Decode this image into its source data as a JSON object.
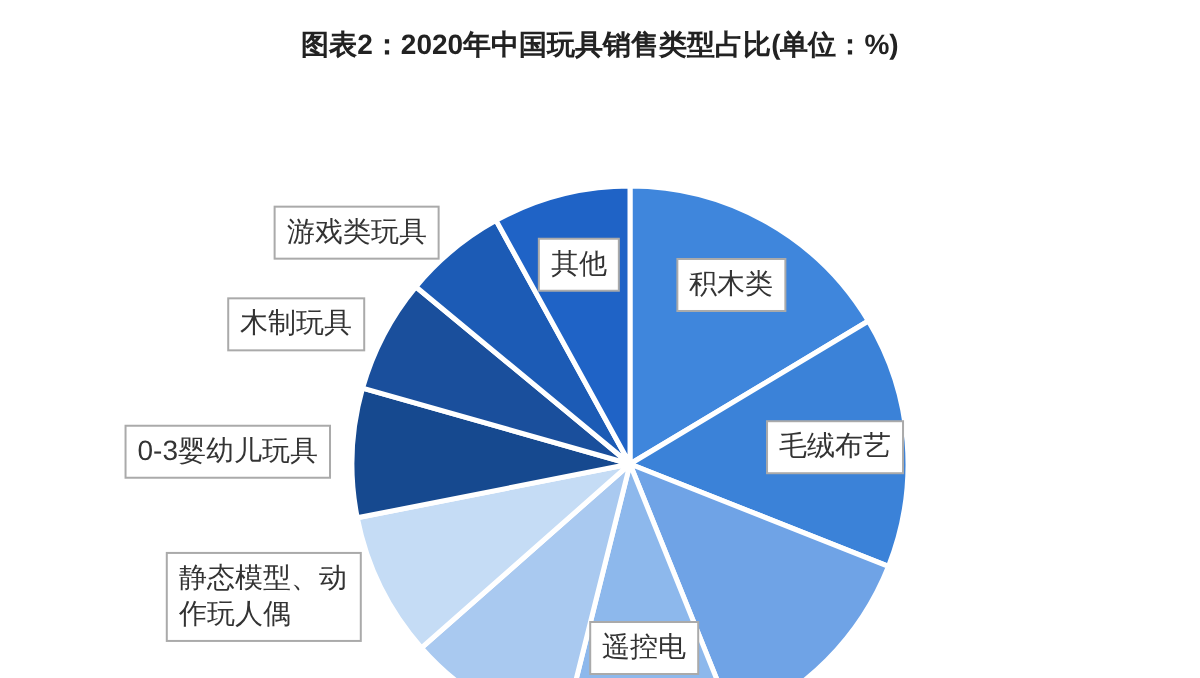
{
  "chart_data": {
    "type": "pie",
    "title": "图表2：2020年中国玩具销售类型占比(单位：%)",
    "categories": [
      "积木类",
      "毛绒布艺",
      null,
      "遥控电",
      null,
      "静态模型、动作玩人偶",
      "0-3婴幼儿玩具",
      "木制玩具",
      "游戏类玩具",
      "其他"
    ],
    "values": [
      16.4,
      14.6,
      12.9,
      10,
      9.6,
      8.4,
      7.5,
      6.6,
      6,
      8
    ],
    "colors": [
      "#3f86dc",
      "#3b82d8",
      "#6fa3e6",
      "#8db8ec",
      "#a9c9f0",
      "#c5dcf5",
      "#16498f",
      "#1a4f9c",
      "#1c5bb5",
      "#1f63c6"
    ]
  }
}
